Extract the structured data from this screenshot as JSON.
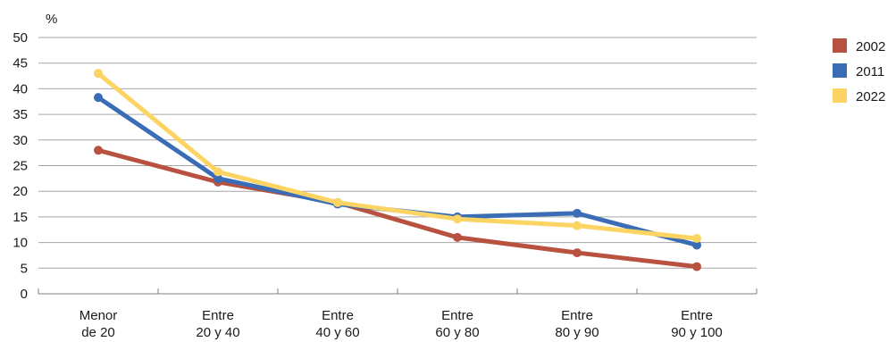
{
  "chart_data": {
    "type": "line",
    "y_unit": "%",
    "ylim": [
      0,
      50
    ],
    "yticks": [
      0,
      5,
      10,
      15,
      20,
      25,
      30,
      35,
      40,
      45,
      50
    ],
    "grid": true,
    "legend_position": "right",
    "categories": [
      [
        "Menor",
        "de 20"
      ],
      [
        "Entre",
        "20 y 40"
      ],
      [
        "Entre",
        "40 y 60"
      ],
      [
        "Entre",
        "60 y 80"
      ],
      [
        "Entre",
        "80 y 90"
      ],
      [
        "Entre",
        "90 y 100"
      ]
    ],
    "series": [
      {
        "name": "2002",
        "color": "#b8513f",
        "values": [
          28.0,
          21.8,
          17.8,
          11.0,
          8.0,
          5.3
        ]
      },
      {
        "name": "2011",
        "color": "#3a6db5",
        "values": [
          38.3,
          22.5,
          17.5,
          15.0,
          15.7,
          9.5
        ]
      },
      {
        "name": "2022",
        "color": "#fbd463",
        "values": [
          43.0,
          23.8,
          17.8,
          14.6,
          13.3,
          10.8
        ]
      }
    ]
  }
}
